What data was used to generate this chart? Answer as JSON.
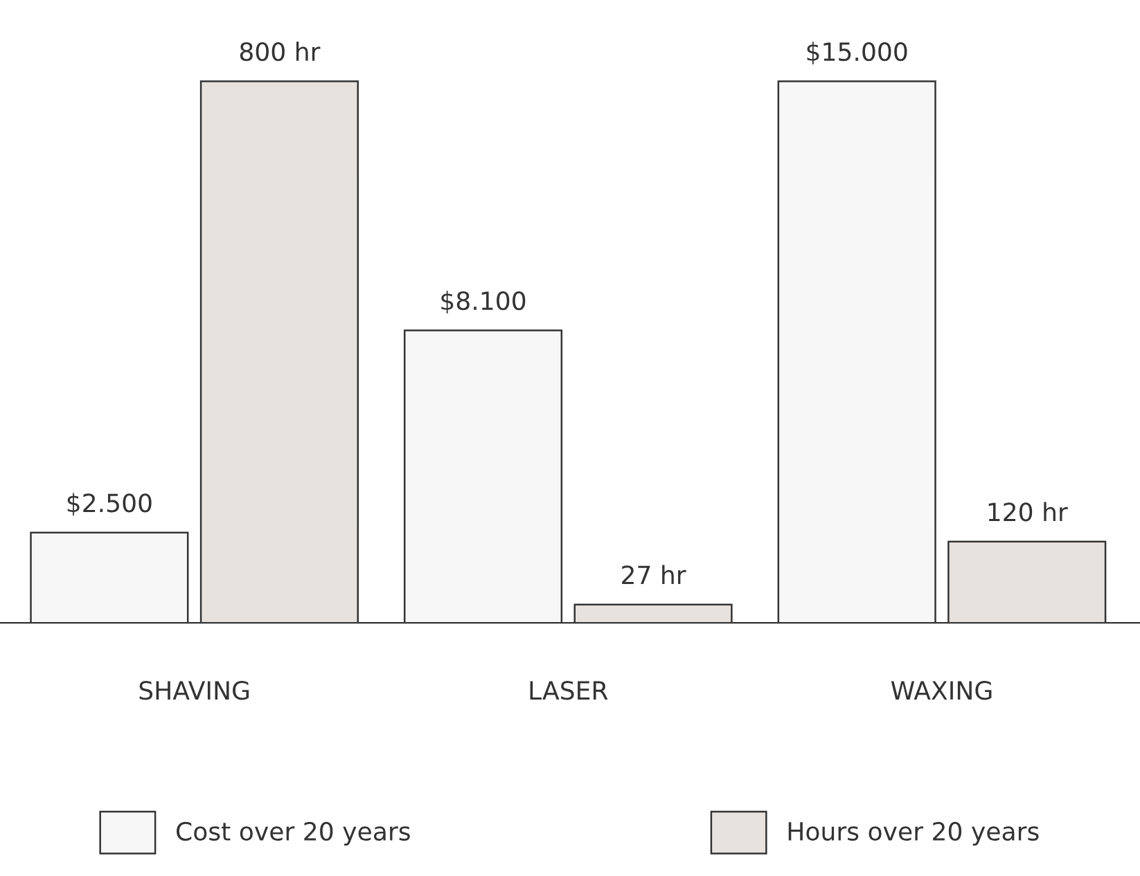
{
  "chart_data": {
    "type": "bar",
    "categories": [
      "SHAVING",
      "LASER",
      "WAXING"
    ],
    "series": [
      {
        "name": "Cost over 20 years",
        "color": "#f7f7f7",
        "values": [
          2500,
          8100,
          15000
        ],
        "value_labels": [
          "$2.500",
          "$8.100",
          "$15.000"
        ]
      },
      {
        "name": "Hours over 20 years",
        "color": "#e7e2de",
        "values": [
          800,
          27,
          120
        ],
        "axis": "y2",
        "value_labels": [
          "800 hr",
          "27 hr",
          "120 hr"
        ]
      }
    ],
    "tick_labels": "x",
    "grid": false,
    "legend": "bottom"
  }
}
